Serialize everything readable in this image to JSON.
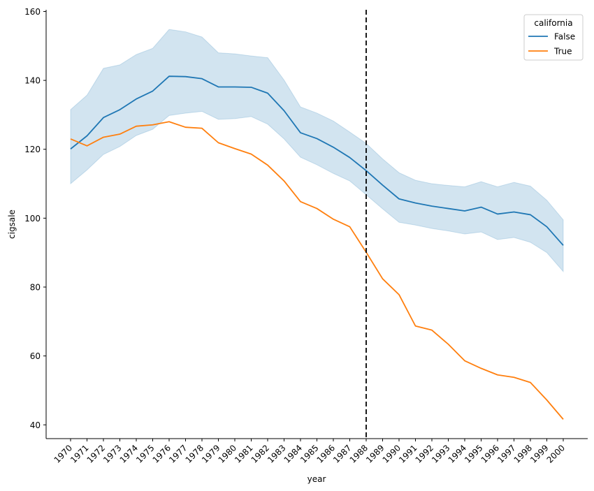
{
  "chart_data": {
    "type": "line",
    "title": "",
    "xlabel": "year",
    "ylabel": "cigsale",
    "ylim": [
      36,
      160.5
    ],
    "yticks": [
      40,
      60,
      80,
      100,
      120,
      140,
      160
    ],
    "x": [
      "1970",
      "1971",
      "1972",
      "1973",
      "1974",
      "1975",
      "1976",
      "1977",
      "1978",
      "1979",
      "1980",
      "1981",
      "1982",
      "1983",
      "1984",
      "1985",
      "1986",
      "1987",
      "1988",
      "1989",
      "1990",
      "1991",
      "1992",
      "1993",
      "1994",
      "1995",
      "1996",
      "1997",
      "1998",
      "1999",
      "2000"
    ],
    "series": [
      {
        "name": "False",
        "color": "#1f77b4",
        "values": [
          120.1,
          123.9,
          129.2,
          131.5,
          134.6,
          136.9,
          141.2,
          141.1,
          140.5,
          138.1,
          138.1,
          138.0,
          136.3,
          131.2,
          124.8,
          123.1,
          120.6,
          117.6,
          113.8,
          109.6,
          105.6,
          104.4,
          103.5,
          102.8,
          102.1,
          103.2,
          101.2,
          101.8,
          101.0,
          97.5,
          92.1
        ],
        "ci_lower": [
          110.0,
          114.0,
          118.5,
          120.8,
          124.0,
          125.8,
          129.8,
          130.5,
          131.0,
          128.7,
          128.9,
          129.5,
          127.3,
          123.0,
          117.7,
          115.5,
          113.0,
          110.8,
          106.8,
          102.7,
          98.8,
          98.0,
          97.0,
          96.3,
          95.4,
          96.0,
          93.8,
          94.4,
          93.0,
          90.0,
          84.5
        ],
        "ci_upper": [
          131.5,
          135.7,
          143.5,
          144.5,
          147.5,
          149.3,
          154.8,
          154.1,
          152.6,
          148.0,
          147.7,
          147.1,
          146.6,
          140.1,
          132.3,
          130.5,
          128.2,
          125.0,
          121.7,
          117.2,
          113.2,
          111.0,
          110.0,
          109.5,
          109.1,
          110.6,
          109.1,
          110.4,
          109.3,
          105.2,
          99.5
        ]
      },
      {
        "name": "True",
        "color": "#ff7f0e",
        "values": [
          123.0,
          121.0,
          123.5,
          124.4,
          126.7,
          127.1,
          128.0,
          126.4,
          126.1,
          121.9,
          120.2,
          118.6,
          115.4,
          110.8,
          104.8,
          102.8,
          99.7,
          97.5,
          90.1,
          82.4,
          77.8,
          68.7,
          67.5,
          63.4,
          58.6,
          56.4,
          54.5,
          53.8,
          52.3,
          47.2,
          41.6
        ]
      }
    ],
    "ci_color": "#1f77b4",
    "annotations": [
      {
        "type": "vline",
        "x": "1988",
        "style": "dashed",
        "color": "#000000"
      }
    ],
    "legend": {
      "title": "california",
      "position": "top-right",
      "entries": [
        "False",
        "True"
      ]
    }
  }
}
